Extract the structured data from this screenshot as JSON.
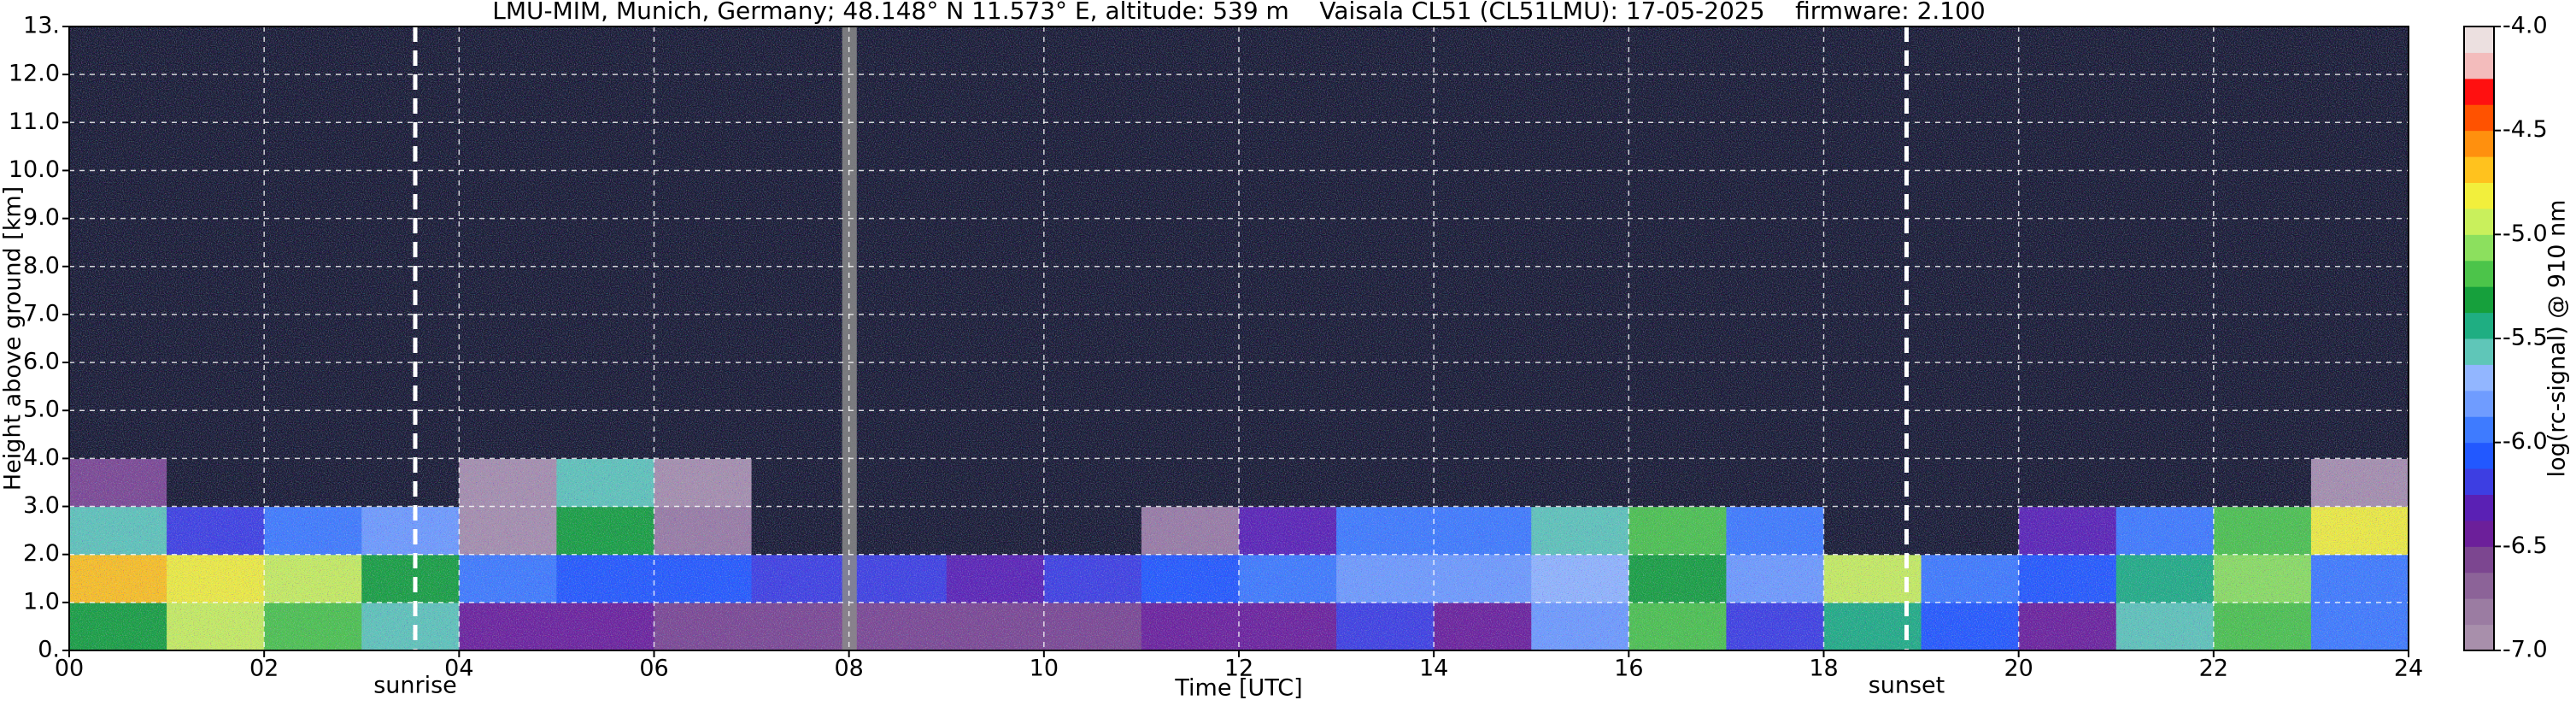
{
  "chart_data": {
    "type": "heatmap",
    "title": "LMU-MIM, Munich, Germany; 48.148° N 11.573° E, altitude: 539 m    Vaisala CL51 (CL51LMU): 17-05-2025    firmware: 2.100",
    "x_label": "Time [UTC]",
    "y_label": "Height above ground [km]",
    "colorbar_label": "log(rc-signal) @ 910 nm",
    "xlim": [
      0,
      24
    ],
    "ylim": [
      0,
      13
    ],
    "xticks": [
      {
        "value": 0,
        "label": "00"
      },
      {
        "value": 2,
        "label": "02"
      },
      {
        "value": 4,
        "label": "04"
      },
      {
        "value": 6,
        "label": "06"
      },
      {
        "value": 8,
        "label": "08"
      },
      {
        "value": 10,
        "label": "10"
      },
      {
        "value": 12,
        "label": "12"
      },
      {
        "value": 14,
        "label": "14"
      },
      {
        "value": 16,
        "label": "16"
      },
      {
        "value": 18,
        "label": "18"
      },
      {
        "value": 20,
        "label": "20"
      },
      {
        "value": 22,
        "label": "22"
      },
      {
        "value": 24,
        "label": "24"
      }
    ],
    "yticks": [
      {
        "value": 0,
        "label": "0."
      },
      {
        "value": 1,
        "label": "1.0"
      },
      {
        "value": 2,
        "label": "2.0"
      },
      {
        "value": 3,
        "label": "3.0"
      },
      {
        "value": 4,
        "label": "4.0"
      },
      {
        "value": 5,
        "label": "5.0"
      },
      {
        "value": 6,
        "label": "6.0"
      },
      {
        "value": 7,
        "label": "7.0"
      },
      {
        "value": 8,
        "label": "8.0"
      },
      {
        "value": 9,
        "label": "9.0"
      },
      {
        "value": 10,
        "label": "10.0"
      },
      {
        "value": 11,
        "label": "11.0"
      },
      {
        "value": 12,
        "label": "12.0"
      },
      {
        "value": 13,
        "label": "13."
      }
    ],
    "clim": [
      -7,
      -4
    ],
    "cticks": [
      {
        "value": -7,
        "label": "-7.0"
      },
      {
        "value": -6.5,
        "label": "-6.5"
      },
      {
        "value": -6,
        "label": "-6.0"
      },
      {
        "value": -5.5,
        "label": "-5.5"
      },
      {
        "value": -5,
        "label": "-5.0"
      },
      {
        "value": -4.5,
        "label": "-4.5"
      },
      {
        "value": -4,
        "label": "-4.0"
      }
    ],
    "colormap": [
      "#a88fab",
      "#9b7ca2",
      "#8c6398",
      "#7c4690",
      "#6c1f9a",
      "#5a20b4",
      "#3d3ee2",
      "#2258ff",
      "#3e7bff",
      "#6f9cff",
      "#92b6ff",
      "#5fc6b8",
      "#1fae82",
      "#16a03c",
      "#4cc44a",
      "#8ce05e",
      "#c9f05c",
      "#f2ef3c",
      "#ffc21e",
      "#ff900e",
      "#ff5200",
      "#ff1010",
      "#f3bcbc",
      "#ece0e0"
    ],
    "under_color": "#15162c",
    "grid": true,
    "annotations": [
      {
        "x": 3.55,
        "label": "sunrise"
      },
      {
        "x": 18.85,
        "label": "sunset"
      }
    ],
    "missing_data": [
      {
        "x0": 7.93,
        "x1": 8.08
      }
    ],
    "values": [
      [
        -5.3,
        -5.0,
        -5.2,
        -5.6,
        -6.4,
        -6.5,
        -6.6,
        -6.6,
        -6.6,
        -6.6,
        -6.6,
        -6.5,
        -6.5,
        -6.2,
        -6.5,
        -5.8,
        -5.2,
        -6.2,
        -5.4,
        -6.1,
        -6.4,
        -5.6,
        -5.2,
        -6.0
      ],
      [
        -4.7,
        -4.8,
        -5.0,
        -5.3,
        -6.0,
        -6.1,
        -6.1,
        -6.2,
        -6.2,
        -6.3,
        -6.2,
        -6.1,
        -5.9,
        -5.8,
        -5.8,
        -5.7,
        -5.3,
        -5.8,
        -4.9,
        -6.0,
        -6.1,
        -5.5,
        -5.1,
        -5.9
      ],
      [
        -5.6,
        -6.2,
        -6.0,
        -5.8,
        -6.9,
        -5.3,
        -6.8,
        -7.1,
        -7.1,
        -7.1,
        -7.1,
        -6.8,
        -6.3,
        -6.0,
        -5.9,
        -5.6,
        -5.2,
        -6.0,
        -7.2,
        -7.1,
        -6.3,
        -6.0,
        -5.2,
        -4.8
      ],
      [
        -6.6,
        -7.2,
        -7.2,
        -7.2,
        -6.9,
        -5.6,
        -6.9,
        -7.1,
        -7.1,
        -7.1,
        -7.1,
        -7.1,
        -7.1,
        -7.1,
        -7.1,
        -7.1,
        -7.1,
        -7.1,
        -7.2,
        -7.1,
        -7.1,
        -7.1,
        -7.1,
        -6.9
      ],
      [
        -7.1,
        -7.2,
        -7.2,
        -7.2,
        -7.1,
        -7.1,
        -7.1,
        -7.1,
        -7.1,
        -7.1,
        -7.1,
        -7.1,
        -7.1,
        -7.1,
        -7.1,
        -7.1,
        -7.1,
        -7.1,
        -7.2,
        -7.1,
        -7.1,
        -7.1,
        -7.1,
        -7.1
      ],
      [
        -7.1,
        -7.2,
        -7.2,
        -7.2,
        -7.1,
        -7.1,
        -7.1,
        -7.1,
        -7.1,
        -7.1,
        -7.1,
        -7.1,
        -7.1,
        -7.1,
        -7.1,
        -7.1,
        -7.1,
        -7.1,
        -7.2,
        -7.1,
        -7.1,
        -7.1,
        -7.1,
        -7.1
      ],
      [
        -7.1,
        -7.2,
        -7.2,
        -7.2,
        -7.1,
        -7.1,
        -7.1,
        -7.1,
        -7.1,
        -7.1,
        -7.1,
        -7.1,
        -7.1,
        -7.1,
        -7.1,
        -7.1,
        -7.1,
        -7.1,
        -7.2,
        -7.1,
        -7.1,
        -7.1,
        -7.1,
        -7.1
      ],
      [
        -7.1,
        -7.2,
        -7.2,
        -7.2,
        -7.1,
        -7.1,
        -7.1,
        -7.1,
        -7.1,
        -7.1,
        -7.1,
        -7.1,
        -7.1,
        -7.1,
        -7.1,
        -7.1,
        -7.1,
        -7.1,
        -7.2,
        -7.1,
        -7.1,
        -7.1,
        -7.1,
        -7.1
      ],
      [
        -7.1,
        -7.2,
        -7.2,
        -7.2,
        -7.1,
        -7.1,
        -7.1,
        -7.1,
        -7.1,
        -7.1,
        -7.1,
        -7.1,
        -7.1,
        -7.1,
        -7.1,
        -7.1,
        -7.1,
        -7.1,
        -7.2,
        -7.1,
        -7.1,
        -7.1,
        -7.1,
        -7.1
      ],
      [
        -7.1,
        -7.2,
        -7.2,
        -7.2,
        -7.1,
        -7.1,
        -7.1,
        -7.1,
        -7.1,
        -7.1,
        -7.1,
        -7.1,
        -7.1,
        -7.1,
        -7.1,
        -7.1,
        -7.1,
        -7.1,
        -7.2,
        -7.1,
        -7.1,
        -7.1,
        -7.1,
        -7.1
      ],
      [
        -7.1,
        -7.2,
        -7.2,
        -7.2,
        -7.1,
        -7.1,
        -7.1,
        -7.1,
        -7.1,
        -7.1,
        -7.1,
        -7.1,
        -7.1,
        -7.1,
        -7.1,
        -7.1,
        -7.1,
        -7.1,
        -7.2,
        -7.1,
        -7.1,
        -7.1,
        -7.1,
        -7.1
      ],
      [
        -7.1,
        -7.2,
        -7.2,
        -7.2,
        -7.1,
        -7.1,
        -7.1,
        -7.1,
        -7.1,
        -7.1,
        -7.1,
        -7.1,
        -7.1,
        -7.1,
        -7.1,
        -7.1,
        -7.1,
        -7.1,
        -7.2,
        -7.1,
        -7.1,
        -7.1,
        -7.1,
        -7.1
      ],
      [
        -7.1,
        -7.2,
        -7.2,
        -7.2,
        -7.1,
        -7.1,
        -7.1,
        -7.1,
        -7.1,
        -7.1,
        -7.1,
        -7.1,
        -7.1,
        -7.1,
        -7.1,
        -7.1,
        -7.1,
        -7.1,
        -7.2,
        -7.1,
        -7.1,
        -7.1,
        -7.1,
        -7.1
      ]
    ]
  }
}
